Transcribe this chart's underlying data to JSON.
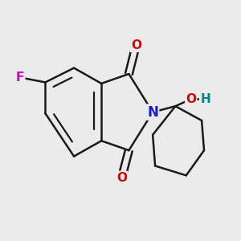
{
  "bg_color": "#ebebeb",
  "bond_color": "#1a1a1a",
  "bond_lw": 1.8,
  "atom_bg": "#ebebeb",
  "colors": {
    "N": "#1a1acc",
    "O": "#dd0000",
    "F": "#cc00cc",
    "H": "#008888",
    "C": "#1a1a1a"
  }
}
